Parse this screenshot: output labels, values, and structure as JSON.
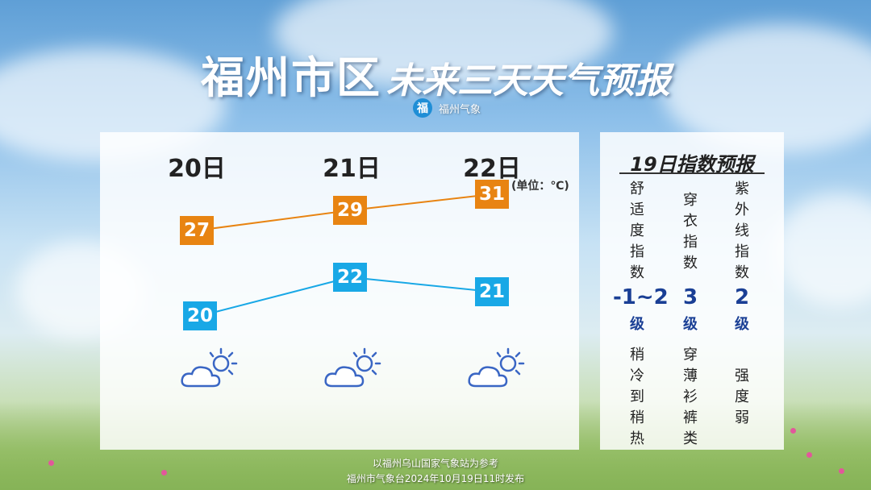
{
  "title": {
    "main": "福州市区",
    "sub": "未来三天天气预报"
  },
  "logo": {
    "mark": "福",
    "text": "福州气象"
  },
  "forecast": {
    "unit": "(单位：℃)",
    "days": [
      {
        "label": "20日",
        "high": "27",
        "low": "20",
        "icon": "cloudy-sun-icon"
      },
      {
        "label": "21日",
        "high": "29",
        "low": "22",
        "icon": "cloudy-sun-icon"
      },
      {
        "label": "22日",
        "high": "31",
        "low": "21",
        "icon": "cloudy-sun-icon"
      }
    ]
  },
  "indices": {
    "title": "19日指数预报",
    "items": [
      {
        "name": "舒适度指数",
        "value": "-1~2",
        "grade": "级",
        "desc": "稍冷到稍热"
      },
      {
        "name": "穿衣指数",
        "value": "3",
        "grade": "级",
        "desc": "穿薄衫裤类"
      },
      {
        "name": "紫外线指数",
        "value": "2",
        "grade": "级",
        "desc": "强度弱"
      }
    ]
  },
  "footer": {
    "line1": "以福州乌山国家气象站为参考",
    "line2": "福州市气象台2024年10月19日11时发布"
  },
  "colors": {
    "high": "#e88412",
    "low": "#19a8e6",
    "index": "#1a3f95",
    "icon": "#3a66c4"
  }
}
